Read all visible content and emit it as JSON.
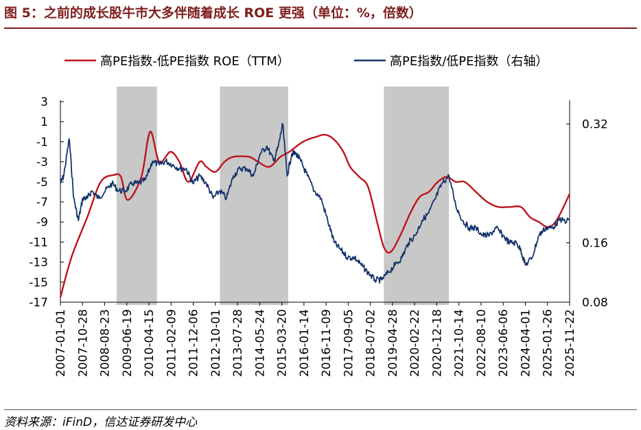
{
  "title": "图 5：之前的成长股牛市大多伴随着成长 ROE 更强（单位：%，倍数）",
  "source": "资料来源：iFinD，信达证券研发中心",
  "colors": {
    "left_series": "#c0121a",
    "right_series": "#14336b",
    "shade": "#c8c8c8",
    "title": "#7f1d1d"
  },
  "chart_data": {
    "type": "line",
    "title": "",
    "xlabel": "",
    "ylabel": "",
    "legend_position": "top",
    "grid": false,
    "x_ticks": [
      "2007-01-01",
      "2007-10-28",
      "2008-08-23",
      "2009-06-19",
      "2010-04-15",
      "2011-02-09",
      "2011-12-06",
      "2012-10-01",
      "2013-07-28",
      "2014-05-24",
      "2015-03-20",
      "2016-01-14",
      "2016-11-09",
      "2017-09-05",
      "2018-07-02",
      "2019-04-28",
      "2020-02-22",
      "2020-12-18",
      "2021-10-14",
      "2022-08-10",
      "2023-06-06",
      "2024-04-01",
      "2025-01-26",
      "2025-11-22"
    ],
    "x_range": [
      "2007-01-01",
      "2025-11-22"
    ],
    "y_left": {
      "range": [
        -17,
        3
      ],
      "ticks": [
        "3",
        "1",
        "-1",
        "-3",
        "-5",
        "-7",
        "-9",
        "-11",
        "-13",
        "-15",
        "-17"
      ]
    },
    "y_right": {
      "range": [
        0.08,
        0.35
      ],
      "ticks": [
        "0.32",
        "0.16",
        "0.08"
      ]
    },
    "shaded_periods": [
      [
        "2009-02-01",
        "2010-08-01"
      ],
      [
        "2012-12-01",
        "2015-06-15"
      ],
      [
        "2019-01-01",
        "2021-06-01"
      ]
    ],
    "series": [
      {
        "name": "高PE指数-低PE指数 ROE（TTM）",
        "axis": "left",
        "x": [
          "2007-01-01",
          "2007-06-01",
          "2008-01-01",
          "2008-07-01",
          "2009-01-01",
          "2009-04-01",
          "2009-07-01",
          "2010-01-01",
          "2010-05-01",
          "2010-09-01",
          "2011-02-01",
          "2011-06-01",
          "2011-10-01",
          "2012-03-01",
          "2012-06-01",
          "2012-10-01",
          "2013-02-01",
          "2013-06-01",
          "2014-01-01",
          "2014-05-01",
          "2014-10-01",
          "2015-03-01",
          "2015-07-01",
          "2016-01-01",
          "2016-07-01",
          "2016-11-01",
          "2017-03-01",
          "2017-07-01",
          "2017-10-01",
          "2018-02-01",
          "2018-06-01",
          "2018-10-01",
          "2019-01-01",
          "2019-04-01",
          "2019-08-01",
          "2020-01-01",
          "2020-05-01",
          "2020-09-01",
          "2021-01-01",
          "2021-05-01",
          "2021-09-01",
          "2022-01-01",
          "2022-06-01",
          "2022-11-01",
          "2023-04-01",
          "2023-09-01",
          "2024-02-01",
          "2024-06-01",
          "2024-10-01",
          "2025-02-01",
          "2025-06-01",
          "2025-11-22"
        ],
        "y": [
          -16.5,
          -12.5,
          -8.5,
          -5,
          -4.3,
          -4.5,
          -6.8,
          -4.5,
          0,
          -3,
          -2,
          -3,
          -5,
          -3,
          -3.5,
          -4,
          -3,
          -2.5,
          -2.5,
          -3,
          -3.5,
          -2.5,
          -2,
          -1,
          -0.5,
          -0.3,
          -0.8,
          -2,
          -3.5,
          -4.5,
          -5.5,
          -9,
          -11.5,
          -12,
          -10.5,
          -8,
          -6.5,
          -6,
          -5,
          -4.5,
          -5,
          -5,
          -6,
          -7,
          -7.5,
          -7.5,
          -7.5,
          -8.5,
          -9,
          -9.5,
          -8.8,
          -6.2
        ]
      },
      {
        "name": "高PE指数/低PE指数（右轴）",
        "axis": "right",
        "x": [
          "2007-01-01",
          "2007-02-15",
          "2007-05-01",
          "2007-07-01",
          "2007-09-01",
          "2007-11-01",
          "2008-01-01",
          "2008-03-01",
          "2008-06-01",
          "2008-09-01",
          "2008-12-01",
          "2009-03-01",
          "2009-06-01",
          "2009-09-01",
          "2009-12-01",
          "2010-03-01",
          "2010-06-01",
          "2010-09-01",
          "2010-12-01",
          "2011-03-01",
          "2011-06-01",
          "2011-09-01",
          "2011-12-01",
          "2012-03-01",
          "2012-06-01",
          "2012-09-01",
          "2012-12-01",
          "2013-03-01",
          "2013-06-01",
          "2013-09-01",
          "2013-12-01",
          "2014-03-01",
          "2014-06-01",
          "2014-09-01",
          "2014-12-01",
          "2015-02-01",
          "2015-04-01",
          "2015-06-01",
          "2015-08-01",
          "2015-10-01",
          "2015-12-01",
          "2016-03-01",
          "2016-06-01",
          "2016-09-01",
          "2016-12-01",
          "2017-03-01",
          "2017-06-01",
          "2017-09-01",
          "2017-12-01",
          "2018-03-01",
          "2018-06-01",
          "2018-09-01",
          "2018-12-01",
          "2019-03-01",
          "2019-06-01",
          "2019-09-01",
          "2019-12-01",
          "2020-03-01",
          "2020-06-01",
          "2020-09-01",
          "2020-12-01",
          "2021-03-01",
          "2021-06-01",
          "2021-09-01",
          "2021-12-01",
          "2022-03-01",
          "2022-06-01",
          "2022-09-01",
          "2022-12-01",
          "2023-03-01",
          "2023-06-01",
          "2023-09-01",
          "2023-12-01",
          "2024-02-01",
          "2024-04-01",
          "2024-07-01",
          "2024-10-01",
          "2025-01-01",
          "2025-04-01",
          "2025-07-01",
          "2025-11-22"
        ],
        "y": [
          0.24,
          0.25,
          0.3,
          0.22,
          0.19,
          0.22,
          0.22,
          0.23,
          0.22,
          0.23,
          0.24,
          0.23,
          0.23,
          0.24,
          0.24,
          0.245,
          0.27,
          0.265,
          0.27,
          0.265,
          0.26,
          0.26,
          0.24,
          0.25,
          0.24,
          0.22,
          0.23,
          0.22,
          0.25,
          0.26,
          0.26,
          0.25,
          0.28,
          0.29,
          0.27,
          0.29,
          0.32,
          0.25,
          0.28,
          0.28,
          0.27,
          0.25,
          0.23,
          0.22,
          0.19,
          0.16,
          0.15,
          0.14,
          0.14,
          0.13,
          0.12,
          0.11,
          0.11,
          0.12,
          0.13,
          0.14,
          0.16,
          0.17,
          0.19,
          0.2,
          0.22,
          0.24,
          0.25,
          0.21,
          0.19,
          0.18,
          0.18,
          0.17,
          0.17,
          0.18,
          0.17,
          0.16,
          0.16,
          0.15,
          0.13,
          0.14,
          0.17,
          0.18,
          0.18,
          0.19,
          0.19
        ]
      }
    ]
  }
}
